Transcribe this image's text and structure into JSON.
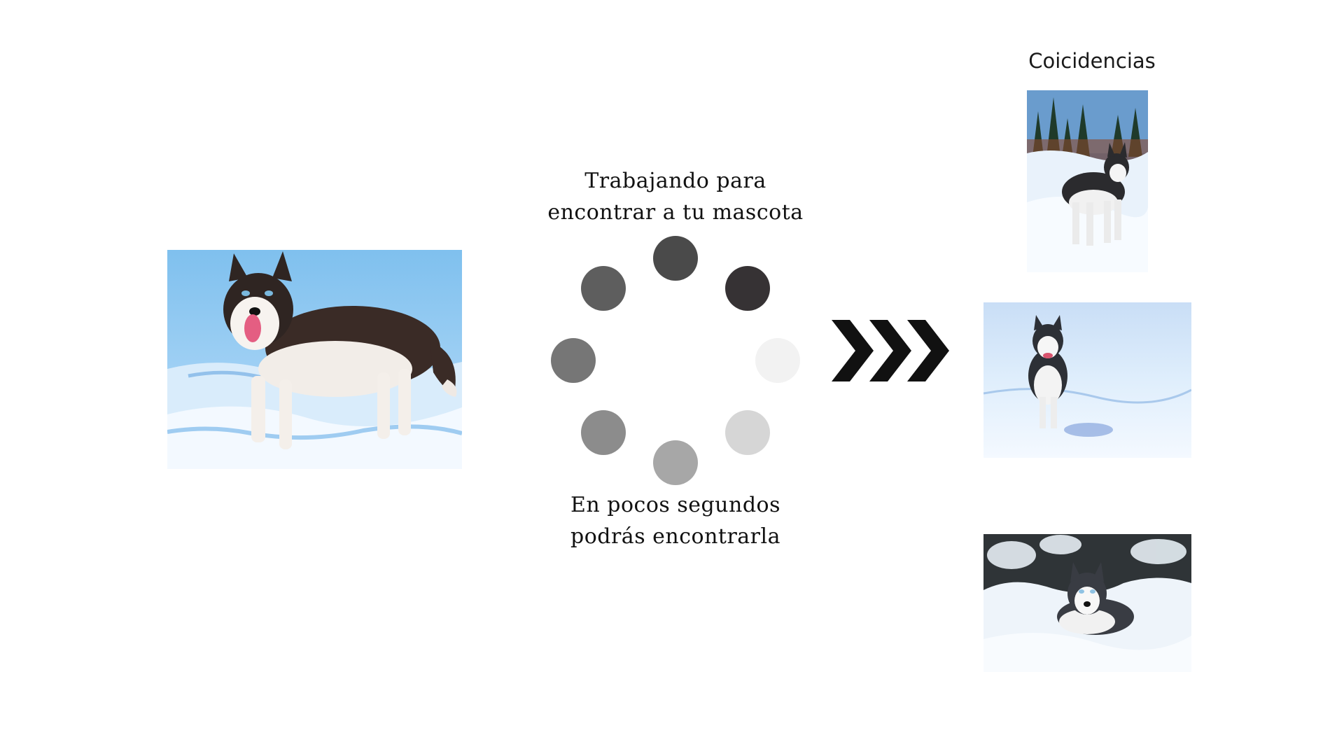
{
  "status": {
    "working_line1": "Trabajando para",
    "working_line2": "encontrar a tu mascota",
    "wait_line1": "En pocos segundos",
    "wait_line2": "podrás encontrarla"
  },
  "matches": {
    "title": "Coicidencias"
  },
  "icons": {
    "spinner": "loading-spinner-icon",
    "arrows": "triple-chevron-right-icon"
  },
  "colors": {
    "background": "#ffffff",
    "text": "#111111",
    "arrow": "#111111",
    "snow_blue": "#a9d3f2"
  }
}
